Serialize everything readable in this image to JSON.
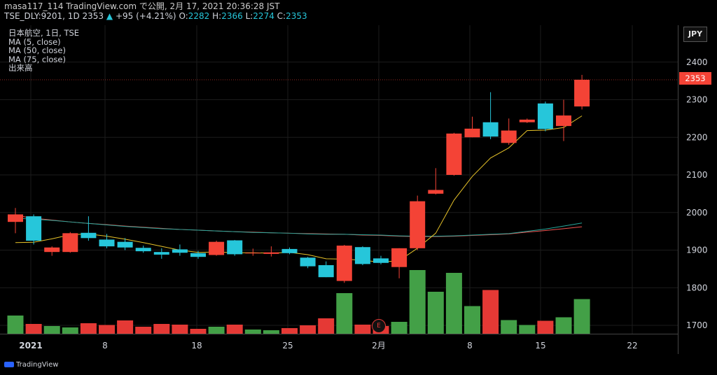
{
  "header": {
    "line1": "masa117_114 TradingView.com で公開, 2月 17, 2021 20:36:28 JST",
    "symbol": "TSE_DLY:9201, 1D 2353",
    "change": "+95 (+4.21%)",
    "o_label": "O:",
    "o_value": "2282",
    "h_label": "H:",
    "h_value": "2366",
    "l_label": "L:",
    "l_value": "2274",
    "c_label": "C:",
    "c_value": "2353"
  },
  "legend": {
    "title": "日本航空, 1日, TSE",
    "ma5": "MA (5, close)",
    "ma50": "MA (50, close)",
    "ma75": "MA (75, close)",
    "volume": "出来高"
  },
  "currency": "JPY",
  "last_price": "2353",
  "event_badge": "E",
  "footer": {
    "brand": "TradingView"
  },
  "colors": {
    "up": "#26c6da",
    "down": "#f44336",
    "vol_up": "#43a047",
    "vol_down": "#e53935",
    "ma5": "#e6c229",
    "ma50": "#26a69a",
    "ma75": "#ef5350",
    "change": "#26c6da"
  },
  "chart_data": {
    "type": "candlestick",
    "y_ticks": [
      1700,
      1800,
      1900,
      2000,
      2100,
      2200,
      2300,
      2400
    ],
    "x_ticks": [
      "2021",
      "8",
      "18",
      "25",
      "2月",
      "8",
      "15",
      "22"
    ],
    "candles": [
      {
        "o": 1975,
        "h": 2012,
        "l": 1945,
        "c": 1995
      },
      {
        "o": 1990,
        "h": 1995,
        "l": 1915,
        "c": 1925
      },
      {
        "o": 1895,
        "h": 1910,
        "l": 1885,
        "c": 1907
      },
      {
        "o": 1895,
        "h": 1948,
        "l": 1893,
        "c": 1945
      },
      {
        "o": 1946,
        "h": 1990,
        "l": 1925,
        "c": 1932
      },
      {
        "o": 1928,
        "h": 1943,
        "l": 1905,
        "c": 1910
      },
      {
        "o": 1922,
        "h": 1932,
        "l": 1900,
        "c": 1907
      },
      {
        "o": 1906,
        "h": 1912,
        "l": 1893,
        "c": 1897
      },
      {
        "o": 1895,
        "h": 1905,
        "l": 1877,
        "c": 1888
      },
      {
        "o": 1902,
        "h": 1915,
        "l": 1885,
        "c": 1893
      },
      {
        "o": 1892,
        "h": 1898,
        "l": 1877,
        "c": 1882
      },
      {
        "o": 1887,
        "h": 1925,
        "l": 1885,
        "c": 1922
      },
      {
        "o": 1926,
        "h": 1927,
        "l": 1885,
        "c": 1889
      },
      {
        "o": 1892,
        "h": 1904,
        "l": 1885,
        "c": 1893
      },
      {
        "o": 1890,
        "h": 1910,
        "l": 1883,
        "c": 1894
      },
      {
        "o": 1903,
        "h": 1907,
        "l": 1889,
        "c": 1892
      },
      {
        "o": 1880,
        "h": 1882,
        "l": 1852,
        "c": 1857
      },
      {
        "o": 1860,
        "h": 1870,
        "l": 1828,
        "c": 1828
      },
      {
        "o": 1818,
        "h": 1914,
        "l": 1813,
        "c": 1912
      },
      {
        "o": 1908,
        "h": 1910,
        "l": 1860,
        "c": 1863
      },
      {
        "o": 1878,
        "h": 1885,
        "l": 1862,
        "c": 1866
      },
      {
        "o": 1855,
        "h": 1905,
        "l": 1825,
        "c": 1905
      },
      {
        "o": 1905,
        "h": 2045,
        "l": 1900,
        "c": 2030
      },
      {
        "o": 2050,
        "h": 2118,
        "l": 2048,
        "c": 2060
      },
      {
        "o": 2100,
        "h": 2212,
        "l": 2098,
        "c": 2210
      },
      {
        "o": 2200,
        "h": 2255,
        "l": 2200,
        "c": 2223
      },
      {
        "o": 2240,
        "h": 2320,
        "l": 2195,
        "c": 2202
      },
      {
        "o": 2185,
        "h": 2250,
        "l": 2180,
        "c": 2218
      },
      {
        "o": 2240,
        "h": 2250,
        "l": 2238,
        "c": 2247
      },
      {
        "o": 2290,
        "h": 2295,
        "l": 2216,
        "c": 2222
      },
      {
        "o": 2230,
        "h": 2300,
        "l": 2190,
        "c": 2258
      },
      {
        "o": 2282,
        "h": 2366,
        "l": 2274,
        "c": 2353
      }
    ],
    "volume": [
      52,
      28,
      22,
      18,
      30,
      25,
      38,
      20,
      28,
      26,
      14,
      20,
      26,
      12,
      10,
      16,
      24,
      44,
      116,
      26,
      22,
      34,
      182,
      120,
      174,
      79,
      125,
      39,
      25,
      37,
      47,
      99
    ],
    "ma5": [
      1920,
      1921,
      1930,
      1941,
      1943,
      1937,
      1929,
      1920,
      1910,
      1900,
      1894,
      1895,
      1893,
      1893,
      1892,
      1894,
      1888,
      1877,
      1876,
      1873,
      1868,
      1872,
      1905,
      1945,
      2033,
      2096,
      2145,
      2172,
      2218,
      2219,
      2226,
      2257
    ],
    "ma50": [
      1985,
      1982,
      1979,
      1975,
      1971,
      1967,
      1963,
      1960,
      1957,
      1955,
      1953,
      1951,
      1949,
      1947,
      1946,
      1945,
      1943,
      1942,
      1942,
      1941,
      1940,
      1938,
      1937,
      1937,
      1938,
      1940,
      1942,
      1944,
      1950,
      1956,
      1964,
      1972
    ],
    "ma75": [
      1992,
      1985,
      1980,
      1975,
      1971,
      1968,
      1964,
      1961,
      1958,
      1955,
      1953,
      1951,
      1949,
      1948,
      1946,
      1945,
      1944,
      1943,
      1942,
      1940,
      1939,
      1937,
      1936,
      1936,
      1937,
      1939,
      1941,
      1943,
      1948,
      1952,
      1957,
      1962
    ]
  }
}
